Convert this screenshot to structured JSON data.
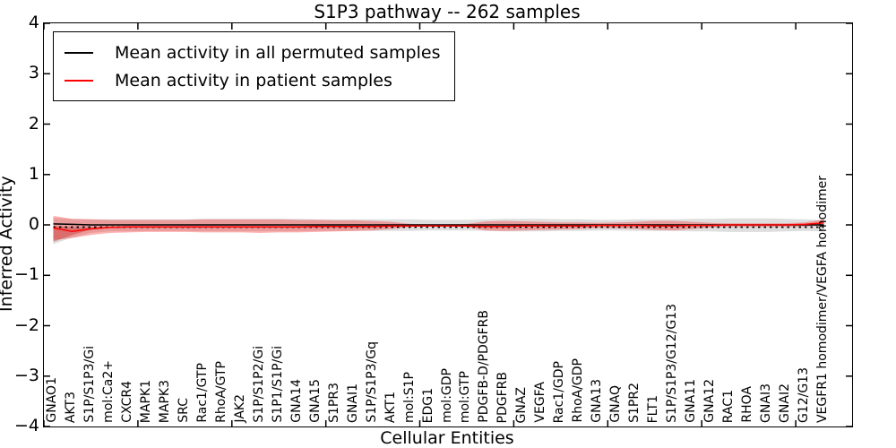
{
  "title": "S1P3 pathway -- 262 samples",
  "legend": {
    "items": [
      {
        "label": "Mean activity in all permuted samples",
        "color": "#000000"
      },
      {
        "label": "Mean activity in patient samples",
        "color": "#ff0000"
      }
    ]
  },
  "axes": {
    "ylabel": "Inferred Activity",
    "xlabel": "Cellular Entities",
    "yticks": [
      "4",
      "3",
      "2",
      "1",
      "0",
      "−1",
      "−2",
      "−3",
      "−4"
    ],
    "ylim": [
      -4,
      4
    ],
    "x_major_tick_step": 5
  },
  "chart_data": {
    "type": "line",
    "title": "S1P3 pathway -- 262 samples",
    "xlabel": "Cellular Entities",
    "ylabel": "Inferred Activity",
    "ylim": [
      -4,
      4
    ],
    "grid": false,
    "legend_position": "upper left",
    "categories": [
      "GNAO1",
      "AKT3",
      "S1P/S1P3/Gi",
      "mol:Ca2+",
      "CXCR4",
      "MAPK1",
      "MAPK3",
      "SRC",
      "Rac1/GTP",
      "RhoA/GTP",
      "JAK2",
      "S1P/S1P2/Gi",
      "S1P1/S1P/Gi",
      "GNA14",
      "GNA15",
      "S1PR3",
      "GNAI1",
      "S1P/S1P3/Gq",
      "AKT1",
      "mol:S1P",
      "EDG1",
      "mol:GDP",
      "mol:GTP",
      "PDGFB-D/PDGFRB",
      "PDGFRB",
      "GNAZ",
      "VEGFA",
      "Rac1/GDP",
      "RhoA/GDP",
      "GNA13",
      "GNAQ",
      "S1PR2",
      "FLT1",
      "S1P/S1P3/G12/G13",
      "GNA11",
      "GNA12",
      "RAC1",
      "RHOA",
      "GNAI3",
      "GNAI2",
      "G12/G13",
      "VEGFR1 homodimer/VEGFA homodimer"
    ],
    "series": [
      {
        "name": "Mean activity in all permuted samples",
        "color": "#000000",
        "style": "solid",
        "values": [
          0.02,
          0.01,
          0,
          0,
          0,
          0,
          0,
          0,
          0,
          0,
          0,
          0,
          0,
          0,
          0,
          0,
          0,
          0,
          0,
          0,
          0,
          0,
          0,
          0,
          0,
          0,
          0,
          0,
          0,
          0,
          0,
          0,
          0,
          0,
          0,
          0,
          0,
          0,
          0,
          0,
          0,
          0
        ]
      },
      {
        "name": "Permuted mean dashed overlay",
        "color": "#000000",
        "style": "dashed",
        "constant_value": -0.045
      },
      {
        "name": "Mean activity in patient samples",
        "color": "#ff0000",
        "style": "solid",
        "values": [
          -0.06,
          -0.13,
          -0.08,
          -0.05,
          -0.04,
          -0.04,
          -0.04,
          -0.04,
          -0.04,
          -0.04,
          -0.04,
          -0.04,
          -0.04,
          -0.04,
          -0.03,
          -0.03,
          -0.03,
          -0.03,
          -0.02,
          -0.02,
          -0.02,
          -0.02,
          -0.02,
          -0.03,
          -0.03,
          -0.02,
          -0.02,
          -0.02,
          -0.02,
          -0.01,
          -0.01,
          -0.01,
          -0.02,
          -0.02,
          -0.01,
          -0.01,
          0,
          0,
          0,
          0,
          0.01,
          0.04
        ]
      }
    ],
    "bands": [
      {
        "name": "permuted-std-band",
        "fill": "rgba(0,0,0,0.13)",
        "upper": [
          0.14,
          0.12,
          0.11,
          0.11,
          0.11,
          0.11,
          0.11,
          0.11,
          0.12,
          0.12,
          0.12,
          0.12,
          0.12,
          0.12,
          0.11,
          0.11,
          0.11,
          0.11,
          0.11,
          0.11,
          0.1,
          0.1,
          0.1,
          0.11,
          0.12,
          0.12,
          0.12,
          0.11,
          0.11,
          0.1,
          0.1,
          0.11,
          0.11,
          0.11,
          0.12,
          0.12,
          0.13,
          0.13,
          0.13,
          0.12,
          0.11,
          0.09
        ],
        "lower": [
          -0.38,
          -0.25,
          -0.16,
          -0.13,
          -0.13,
          -0.12,
          -0.12,
          -0.12,
          -0.13,
          -0.13,
          -0.13,
          -0.13,
          -0.13,
          -0.13,
          -0.12,
          -0.12,
          -0.12,
          -0.12,
          -0.12,
          -0.12,
          -0.11,
          -0.11,
          -0.11,
          -0.12,
          -0.13,
          -0.13,
          -0.13,
          -0.12,
          -0.12,
          -0.11,
          -0.11,
          -0.12,
          -0.12,
          -0.12,
          -0.13,
          -0.13,
          -0.14,
          -0.14,
          -0.14,
          -0.13,
          -0.12,
          -0.13
        ]
      },
      {
        "name": "patient-std-band",
        "fill": "rgba(255,20,20,0.32)",
        "upper": [
          0.18,
          0.12,
          0.11,
          0.1,
          0.1,
          0.1,
          0.1,
          0.1,
          0.11,
          0.11,
          0.11,
          0.11,
          0.11,
          0.1,
          0.1,
          0.09,
          0.09,
          0.08,
          0.06,
          0.02,
          0.01,
          0.01,
          0.02,
          0.07,
          0.08,
          0.07,
          0.06,
          0.05,
          0.05,
          0.04,
          0.05,
          0.06,
          0.08,
          0.08,
          0.06,
          0.04,
          0.03,
          0.03,
          0.03,
          0.03,
          0.05,
          0.11
        ],
        "lower": [
          -0.3,
          -0.26,
          -0.2,
          -0.16,
          -0.15,
          -0.14,
          -0.14,
          -0.14,
          -0.15,
          -0.15,
          -0.15,
          -0.16,
          -0.15,
          -0.15,
          -0.14,
          -0.13,
          -0.12,
          -0.11,
          -0.08,
          -0.04,
          -0.03,
          -0.03,
          -0.04,
          -0.11,
          -0.12,
          -0.11,
          -0.1,
          -0.09,
          -0.08,
          -0.06,
          -0.07,
          -0.08,
          -0.1,
          -0.11,
          -0.08,
          -0.05,
          -0.04,
          -0.04,
          -0.04,
          -0.04,
          -0.03,
          -0.01
        ]
      },
      {
        "name": "patient-left-inner-band",
        "fill": "rgba(190,0,0,0.30)",
        "x": [
          0,
          1,
          2,
          3
        ],
        "upper": [
          -0.02,
          -0.05,
          -0.05,
          -0.04
        ],
        "lower": [
          -0.34,
          -0.2,
          -0.09,
          -0.05
        ]
      }
    ]
  }
}
